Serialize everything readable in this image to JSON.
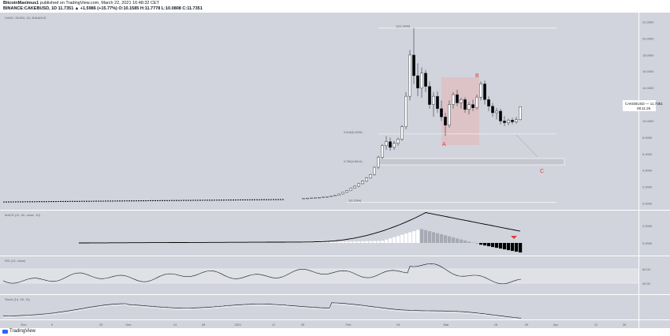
{
  "header": {
    "author": "BitcoinMaximus1",
    "published_text": "published on TradingView.com, March 22, 2021 16:48:32 CET",
    "symbol_line": "BINANCE:CAKEBUSD, 1D  11.7351 ▲ +1.5986 (+15.77%)  O:10.1585  H:11.7778  L:10.0808  C:11.7351"
  },
  "chart_data": {
    "type": "candlestick",
    "title": "CAKE / BUSD, 1D, BINANCE",
    "price_axis_ticks": [
      "22.0000",
      "20.0000",
      "18.0000",
      "16.0000",
      "14.0000",
      "12.0000",
      "10.0000",
      "8.0000",
      "6.0000",
      "4.0000",
      "2.0000",
      "0.0000"
    ],
    "time_axis_ticks": [
      "Nov",
      "9",
      "23",
      "Dec",
      "14",
      "28",
      "2021",
      "11",
      "25",
      "Feb",
      "15",
      "Mar",
      "15",
      "29",
      "Apr",
      "12",
      "26"
    ],
    "current_price_label": "CAKEBUSD",
    "current_price": "11.7351",
    "countdown": "09:11:29",
    "fib_levels": [
      {
        "label": "1(21.3000)",
        "value": 21.3
      },
      {
        "label": "0.618(8.4295)",
        "value": 8.43
      },
      {
        "label": "0.786(4.8614)",
        "value": 4.86
      },
      {
        "label": "1(0.1564)",
        "value": 0.16
      }
    ],
    "annotations": [
      "A",
      "B",
      "C"
    ],
    "candles": [
      [
        0.62,
        0.65,
        0.6,
        0.64
      ],
      [
        0.64,
        0.66,
        0.63,
        0.65
      ],
      [
        0.65,
        0.68,
        0.64,
        0.67
      ],
      [
        0.67,
        0.72,
        0.66,
        0.7
      ],
      [
        0.7,
        0.75,
        0.69,
        0.74
      ],
      [
        0.74,
        0.8,
        0.72,
        0.78
      ],
      [
        0.78,
        0.85,
        0.76,
        0.83
      ],
      [
        0.83,
        0.9,
        0.8,
        0.88
      ],
      [
        0.88,
        1.0,
        0.86,
        0.98
      ],
      [
        0.98,
        1.2,
        0.95,
        1.15
      ],
      [
        1.15,
        1.4,
        1.1,
        1.35
      ],
      [
        1.35,
        1.6,
        1.3,
        1.55
      ],
      [
        1.55,
        1.9,
        1.5,
        1.85
      ],
      [
        1.85,
        2.2,
        1.8,
        2.1
      ],
      [
        2.1,
        2.5,
        2.0,
        2.4
      ],
      [
        2.4,
        2.8,
        2.3,
        2.7
      ],
      [
        2.7,
        3.2,
        2.6,
        3.1
      ],
      [
        3.1,
        3.6,
        3.0,
        3.5
      ],
      [
        3.5,
        4.5,
        3.4,
        4.4
      ],
      [
        4.4,
        5.8,
        4.2,
        5.6
      ],
      [
        5.6,
        7.2,
        5.4,
        7.0
      ],
      [
        7.0,
        8.2,
        6.5,
        7.5
      ],
      [
        7.5,
        8.0,
        6.4,
        6.8
      ],
      [
        6.8,
        7.6,
        6.5,
        7.3
      ],
      [
        7.3,
        8.0,
        7.0,
        7.8
      ],
      [
        7.8,
        9.5,
        7.6,
        9.3
      ],
      [
        9.3,
        13.5,
        9.0,
        13.0
      ],
      [
        13.0,
        18.6,
        12.5,
        18.0
      ],
      [
        18.0,
        21.3,
        14.5,
        15.5
      ],
      [
        15.5,
        17.0,
        13.0,
        14.0
      ],
      [
        14.0,
        16.5,
        12.8,
        15.8
      ],
      [
        15.8,
        16.2,
        13.5,
        14.2
      ],
      [
        14.2,
        14.8,
        11.5,
        12.0
      ],
      [
        12.0,
        13.5,
        10.5,
        13.0
      ],
      [
        13.0,
        13.6,
        11.0,
        11.5
      ],
      [
        11.5,
        12.5,
        10.0,
        10.5
      ],
      [
        10.5,
        11.0,
        8.2,
        9.5
      ],
      [
        9.5,
        12.5,
        9.2,
        12.0
      ],
      [
        12.0,
        13.5,
        11.5,
        13.2
      ],
      [
        13.2,
        13.8,
        11.8,
        12.2
      ],
      [
        12.2,
        12.8,
        11.5,
        12.6
      ],
      [
        12.6,
        12.9,
        11.0,
        11.4
      ],
      [
        11.4,
        12.3,
        10.8,
        12.0
      ],
      [
        12.0,
        12.6,
        11.2,
        11.6
      ],
      [
        11.6,
        13.2,
        11.4,
        12.9
      ],
      [
        12.9,
        14.8,
        12.5,
        14.5
      ],
      [
        14.5,
        14.9,
        12.0,
        12.6
      ],
      [
        12.6,
        13.0,
        11.2,
        11.8
      ],
      [
        11.8,
        12.2,
        10.5,
        11.0
      ],
      [
        11.0,
        11.6,
        10.2,
        11.2
      ],
      [
        11.2,
        11.5,
        9.6,
        10.0
      ],
      [
        10.0,
        10.6,
        9.4,
        9.8
      ],
      [
        9.8,
        10.3,
        9.5,
        10.1
      ],
      [
        10.1,
        10.4,
        9.6,
        9.9
      ],
      [
        9.9,
        10.5,
        9.7,
        10.16
      ],
      [
        10.16,
        11.78,
        10.08,
        11.74
      ]
    ],
    "macd_label": "MACD (21, 50, close, 10)",
    "macd_ticks": [
      "2.0000",
      "0.0000"
    ],
    "rsi_label": "RSI (14, close)",
    "rsi_ticks": [
      "60.00",
      "40.00"
    ],
    "stoch_label": "Stoch (14, 28, 14)"
  },
  "footer": {
    "brand": "TradingView"
  },
  "colors": {
    "pane_bg": "#d1d4dc",
    "up": "#ffffff",
    "down": "#000000",
    "annotation": "#e53935",
    "box": "#e8b4b4"
  }
}
